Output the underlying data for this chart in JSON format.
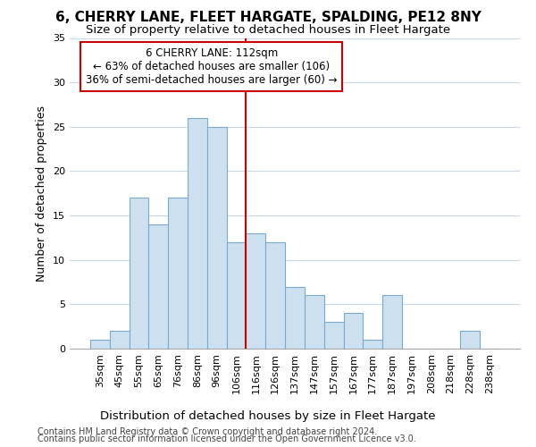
{
  "title": "6, CHERRY LANE, FLEET HARGATE, SPALDING, PE12 8NY",
  "subtitle": "Size of property relative to detached houses in Fleet Hargate",
  "xlabel": "Distribution of detached houses by size in Fleet Hargate",
  "ylabel": "Number of detached properties",
  "categories": [
    "35sqm",
    "45sqm",
    "55sqm",
    "65sqm",
    "76sqm",
    "86sqm",
    "96sqm",
    "106sqm",
    "116sqm",
    "126sqm",
    "137sqm",
    "147sqm",
    "157sqm",
    "167sqm",
    "177sqm",
    "187sqm",
    "197sqm",
    "208sqm",
    "218sqm",
    "228sqm",
    "238sqm"
  ],
  "values": [
    1,
    2,
    17,
    14,
    17,
    26,
    25,
    12,
    13,
    12,
    7,
    6,
    3,
    4,
    1,
    6,
    0,
    0,
    0,
    2,
    0
  ],
  "bar_color": "#cce0f0",
  "bar_edge_color": "#7aabcc",
  "vline_color": "#cc0000",
  "annotation_line1": "6 CHERRY LANE: 112sqm",
  "annotation_line2": "← 63% of detached houses are smaller (106)",
  "annotation_line3": "36% of semi-detached houses are larger (60) →",
  "annotation_box_facecolor": "#ffffff",
  "annotation_box_edgecolor": "#cc0000",
  "ylim": [
    0,
    35
  ],
  "yticks": [
    0,
    5,
    10,
    15,
    20,
    25,
    30,
    35
  ],
  "background_color": "#ffffff",
  "grid_color": "#c8d8e8",
  "title_fontsize": 11,
  "subtitle_fontsize": 9.5,
  "ylabel_fontsize": 9,
  "xlabel_fontsize": 9.5,
  "tick_fontsize": 8,
  "annotation_fontsize": 8.5,
  "footer_fontsize": 7,
  "footer_line1": "Contains HM Land Registry data © Crown copyright and database right 2024.",
  "footer_line2": "Contains public sector information licensed under the Open Government Licence v3.0."
}
